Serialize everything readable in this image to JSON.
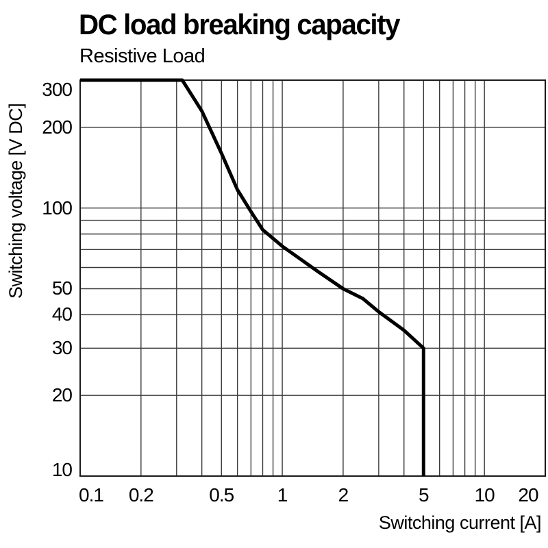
{
  "chart_data": {
    "type": "line",
    "title": "DC load breaking capacity",
    "subtitle": "Resistive Load",
    "xlabel": "Switching current [A]",
    "ylabel": "Switching voltage [V DC]",
    "x_scale": "log",
    "y_scale": "log",
    "xlim": [
      0.1,
      20
    ],
    "ylim": [
      10,
      300
    ],
    "x_ticks": [
      {
        "v": 0.1,
        "label": "0.1"
      },
      {
        "v": 0.2,
        "label": "0.2"
      },
      {
        "v": 0.5,
        "label": "0.5"
      },
      {
        "v": 1,
        "label": "1"
      },
      {
        "v": 2,
        "label": "2"
      },
      {
        "v": 5,
        "label": "5"
      },
      {
        "v": 10,
        "label": "10"
      },
      {
        "v": 20,
        "label": "20"
      }
    ],
    "y_ticks": [
      {
        "v": 10,
        "label": "10"
      },
      {
        "v": 20,
        "label": "20"
      },
      {
        "v": 30,
        "label": "30"
      },
      {
        "v": 40,
        "label": "40"
      },
      {
        "v": 50,
        "label": "50"
      },
      {
        "v": 100,
        "label": "100"
      },
      {
        "v": 200,
        "label": "200"
      },
      {
        "v": 300,
        "label": "300"
      }
    ],
    "x_gridlines": [
      0.2,
      0.3,
      0.4,
      0.5,
      0.6,
      0.7,
      0.8,
      0.9,
      1,
      2,
      3,
      4,
      5,
      6,
      7,
      8,
      9,
      10
    ],
    "y_gridlines": [
      20,
      30,
      40,
      50,
      60,
      70,
      80,
      90,
      100,
      200
    ],
    "grid_on": true,
    "legend": "none",
    "series": [
      {
        "name": "Resistive Load",
        "points": [
          [
            0.1,
            300
          ],
          [
            0.32,
            300
          ],
          [
            0.4,
            230
          ],
          [
            0.5,
            160
          ],
          [
            0.6,
            117
          ],
          [
            0.7,
            97
          ],
          [
            0.8,
            83
          ],
          [
            0.9,
            77
          ],
          [
            1,
            72
          ],
          [
            1.5,
            58
          ],
          [
            2,
            50
          ],
          [
            2.5,
            46
          ],
          [
            3,
            41
          ],
          [
            4,
            35
          ],
          [
            5,
            30
          ],
          [
            5,
            10
          ]
        ]
      }
    ],
    "colors": {
      "background": "#ffffff",
      "text": "#000000",
      "grid": "#3a3a3a",
      "border": "#1a1a1a",
      "curve": "#000000"
    }
  }
}
